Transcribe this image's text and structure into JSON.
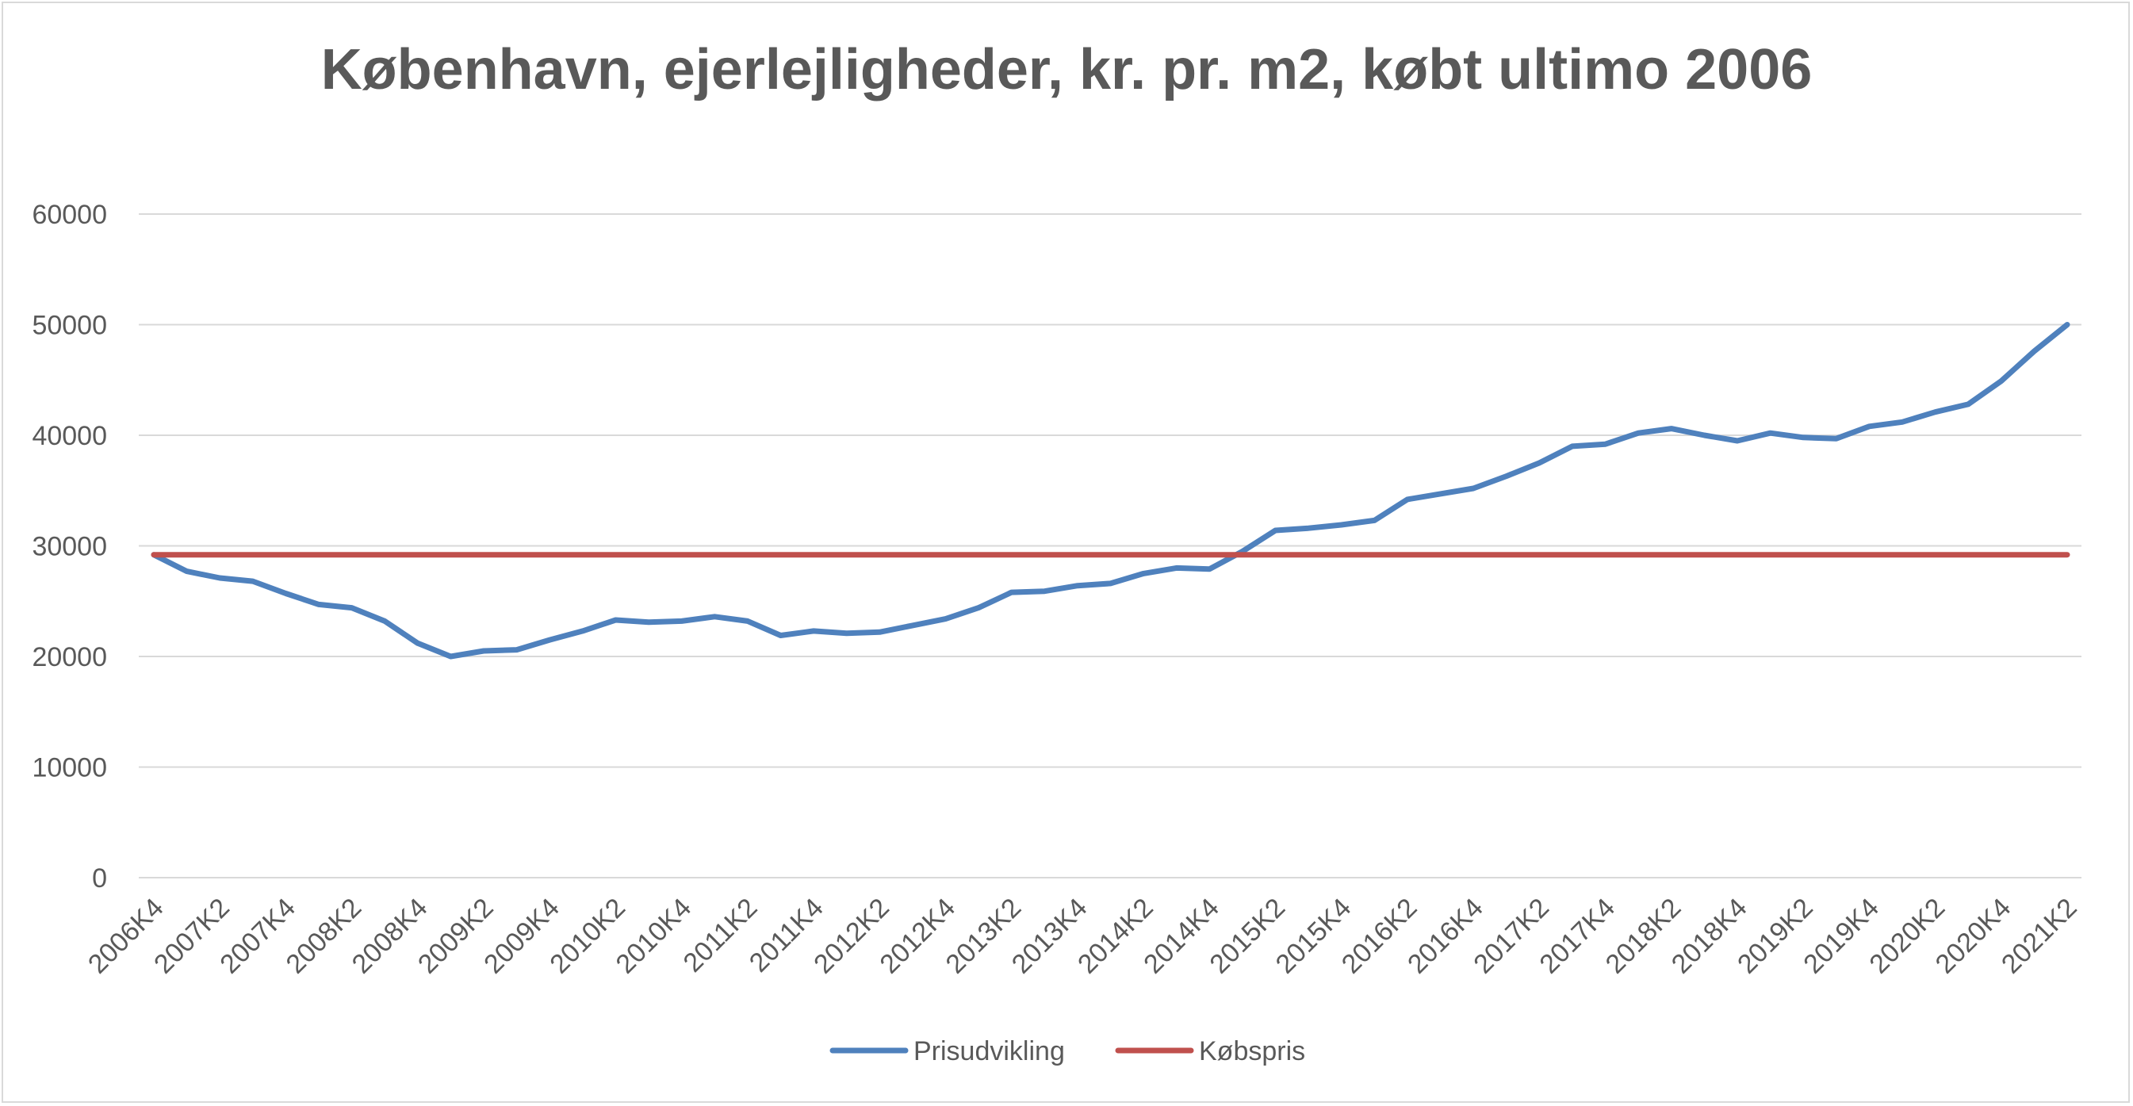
{
  "chart_data": {
    "type": "line",
    "title": "København, ejerlejligheder, kr. pr. m2, købt ultimo 2006",
    "xlabel": "",
    "ylabel": "",
    "ylim": [
      0,
      60000
    ],
    "yticks": [
      0,
      10000,
      20000,
      30000,
      40000,
      50000,
      60000
    ],
    "grid": true,
    "legend_position": "bottom",
    "x": [
      "2006K4",
      "2007K1",
      "2007K2",
      "2007K3",
      "2007K4",
      "2008K1",
      "2008K2",
      "2008K3",
      "2008K4",
      "2009K1",
      "2009K2",
      "2009K3",
      "2009K4",
      "2010K1",
      "2010K2",
      "2010K3",
      "2010K4",
      "2011K1",
      "2011K2",
      "2011K3",
      "2011K4",
      "2012K1",
      "2012K2",
      "2012K3",
      "2012K4",
      "2013K1",
      "2013K2",
      "2013K3",
      "2013K4",
      "2014K1",
      "2014K2",
      "2014K3",
      "2014K4",
      "2015K1",
      "2015K2",
      "2015K3",
      "2015K4",
      "2016K1",
      "2016K2",
      "2016K3",
      "2016K4",
      "2017K1",
      "2017K2",
      "2017K3",
      "2017K4",
      "2018K1",
      "2018K2",
      "2018K3",
      "2018K4",
      "2019K1",
      "2019K2",
      "2019K3",
      "2019K4",
      "2020K1",
      "2020K2",
      "2020K3",
      "2020K4",
      "2021K1",
      "2021K2"
    ],
    "xtick_labels": [
      "2006K4",
      "2007K2",
      "2007K4",
      "2008K2",
      "2008K4",
      "2009K2",
      "2009K4",
      "2010K2",
      "2010K4",
      "2011K2",
      "2011K4",
      "2012K2",
      "2012K4",
      "2013K2",
      "2013K4",
      "2014K2",
      "2014K4",
      "2015K2",
      "2015K4",
      "2016K2",
      "2016K4",
      "2017K2",
      "2017K4",
      "2018K2",
      "2018K4",
      "2019K2",
      "2019K4",
      "2020K2",
      "2020K4",
      "2021K2"
    ],
    "series": [
      {
        "name": "Prisudvikling",
        "color": "#4f81bd",
        "values": [
          29200,
          27700,
          27100,
          26800,
          25700,
          24700,
          24400,
          23200,
          21200,
          20000,
          20500,
          20600,
          21500,
          22300,
          23300,
          23100,
          23200,
          23600,
          23200,
          21900,
          22300,
          22100,
          22200,
          22800,
          23400,
          24400,
          25800,
          25900,
          26400,
          26600,
          27500,
          28000,
          27900,
          29500,
          31400,
          31600,
          31900,
          32300,
          34200,
          34700,
          35200,
          36300,
          37500,
          39000,
          39200,
          40200,
          40600,
          40000,
          39500,
          40200,
          39800,
          39700,
          40800,
          41200,
          42100,
          42800,
          44900,
          47600,
          50000
        ]
      },
      {
        "name": "Købspris",
        "color": "#c0504d",
        "values": [
          29200,
          29200,
          29200,
          29200,
          29200,
          29200,
          29200,
          29200,
          29200,
          29200,
          29200,
          29200,
          29200,
          29200,
          29200,
          29200,
          29200,
          29200,
          29200,
          29200,
          29200,
          29200,
          29200,
          29200,
          29200,
          29200,
          29200,
          29200,
          29200,
          29200,
          29200,
          29200,
          29200,
          29200,
          29200,
          29200,
          29200,
          29200,
          29200,
          29200,
          29200,
          29200,
          29200,
          29200,
          29200,
          29200,
          29200,
          29200,
          29200,
          29200,
          29200,
          29200,
          29200,
          29200,
          29200,
          29200,
          29200,
          29200,
          29200
        ]
      }
    ]
  }
}
